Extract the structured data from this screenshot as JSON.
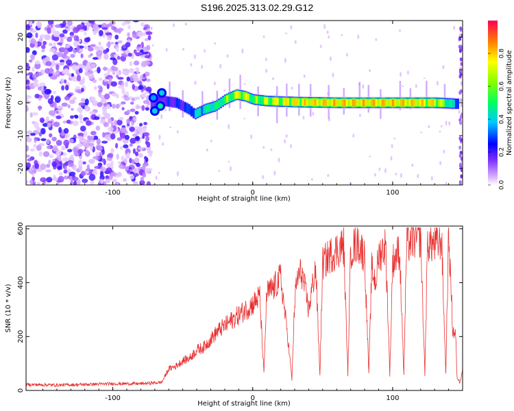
{
  "title": "S196.2025.313.02.29.G12",
  "chart_data": [
    {
      "type": "heatmap",
      "xlabel": "Height of straight line (km)",
      "ylabel": "Frequency (Hz)",
      "xlim": [
        -162,
        150
      ],
      "ylim": [
        -25,
        25
      ],
      "xticks": [
        -100,
        0,
        100
      ],
      "xtick_labels": [
        "-100",
        "0",
        "100"
      ],
      "yticks": [
        -20,
        -10,
        0,
        10,
        20
      ],
      "ytick_labels": [
        "-20",
        "-10",
        "0",
        "10",
        "20"
      ],
      "noise_region_x": [
        -162,
        -73
      ],
      "ridge": {
        "x": [
          -73,
          -68,
          -63,
          -55,
          -46,
          -42,
          -35,
          -27,
          -20,
          -12,
          -6,
          0,
          10,
          30,
          60,
          100,
          130,
          145
        ],
        "freq": [
          -1.0,
          0.5,
          0.5,
          0.0,
          -2.0,
          -3.5,
          -2.0,
          -1.0,
          1.0,
          2.5,
          2.0,
          1.0,
          0.5,
          0.2,
          0.0,
          0.0,
          0.0,
          -0.3
        ],
        "amplitude": [
          0.2,
          0.25,
          0.3,
          0.3,
          0.35,
          0.45,
          0.55,
          0.6,
          0.7,
          0.85,
          0.8,
          0.7,
          0.8,
          0.9,
          0.95,
          0.95,
          0.9,
          0.4
        ]
      },
      "colorbar": {
        "label": "Normalized spectral amplitude",
        "range": [
          0,
          1
        ],
        "ticks": [
          0.0,
          0.2,
          0.4,
          0.6,
          0.8
        ],
        "tick_labels": [
          "0.0",
          "0.2",
          "0.4",
          "0.6",
          "0.8"
        ],
        "colors": [
          "#ffffff",
          "#a040ff",
          "#0000ff",
          "#00ffff",
          "#00ff00",
          "#ffff00",
          "#ff8000",
          "#ff0040"
        ]
      }
    },
    {
      "type": "line",
      "xlabel": "Height of straight line (km)",
      "ylabel": "SNR (10 * v/v)",
      "xlim": [
        -162,
        150
      ],
      "ylim": [
        0,
        610
      ],
      "xticks": [
        -100,
        0,
        100
      ],
      "xtick_labels": [
        "-100",
        "0",
        "100"
      ],
      "yticks": [
        0,
        200,
        400,
        600
      ],
      "ytick_labels": [
        "0",
        "200",
        "400",
        "600"
      ],
      "color": "#e83030",
      "series": [
        {
          "name": "SNR",
          "x": [
            -162,
            -140,
            -120,
            -100,
            -80,
            -65,
            -60,
            -55,
            -50,
            -45,
            -40,
            -35,
            -30,
            -25,
            -20,
            -15,
            -10,
            -5,
            0,
            5,
            8,
            10,
            15,
            20,
            25,
            28,
            30,
            32,
            35,
            40,
            45,
            48,
            50,
            55,
            60,
            65,
            68,
            70,
            75,
            80,
            83,
            85,
            88,
            90,
            95,
            98,
            100,
            105,
            108,
            110,
            115,
            120,
            123,
            125,
            130,
            135,
            138,
            140,
            143,
            145,
            146,
            148,
            150
          ],
          "y": [
            22,
            20,
            22,
            25,
            25,
            30,
            80,
            90,
            110,
            120,
            150,
            160,
            190,
            220,
            240,
            260,
            280,
            300,
            320,
            350,
            60,
            360,
            380,
            420,
            200,
            40,
            330,
            420,
            440,
            300,
            460,
            60,
            470,
            500,
            520,
            540,
            60,
            520,
            550,
            500,
            60,
            450,
            400,
            500,
            540,
            60,
            480,
            520,
            60,
            540,
            560,
            570,
            60,
            550,
            540,
            560,
            60,
            590,
            220,
            210,
            50,
            30,
            80
          ]
        }
      ]
    }
  ]
}
